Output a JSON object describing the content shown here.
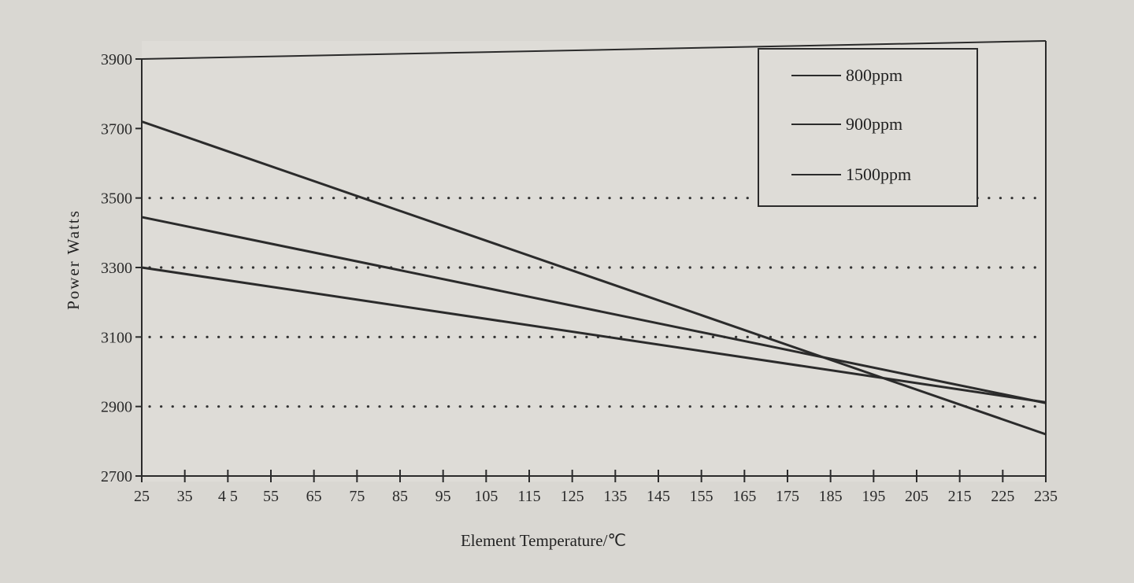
{
  "chart_data": {
    "type": "line",
    "title": "",
    "xlabel": "Element Temperature/℃",
    "ylabel": "Power Watts",
    "x_ticks": [
      "25",
      "35",
      "4 5",
      "55",
      "65",
      "75",
      "85",
      "95",
      "105",
      "115",
      "125",
      "135",
      "145",
      "155",
      "165",
      "175",
      "185",
      "195",
      "205",
      "215",
      "225",
      "235"
    ],
    "y_ticks": [
      "3900",
      "3700",
      "3500",
      "3300",
      "3100",
      "2900",
      "2700"
    ],
    "xlim": [
      25,
      235
    ],
    "ylim": [
      2700,
      3900
    ],
    "grid_y_dotted": [
      3500,
      3300,
      3100,
      2900
    ],
    "legend_position": "top-right",
    "legend": [
      "800ppm",
      "900ppm",
      "1500ppm"
    ],
    "lines": [
      {
        "points": [
          [
            25,
            3720
          ],
          [
            235,
            2820
          ]
        ]
      },
      {
        "points": [
          [
            25,
            3445
          ],
          [
            235,
            2910
          ]
        ]
      },
      {
        "points": [
          [
            25,
            3300
          ],
          [
            235,
            2912
          ]
        ]
      }
    ],
    "colors": {
      "line": "#2b2b2b",
      "background": "#d9d7d2",
      "grid": "#333333"
    }
  }
}
